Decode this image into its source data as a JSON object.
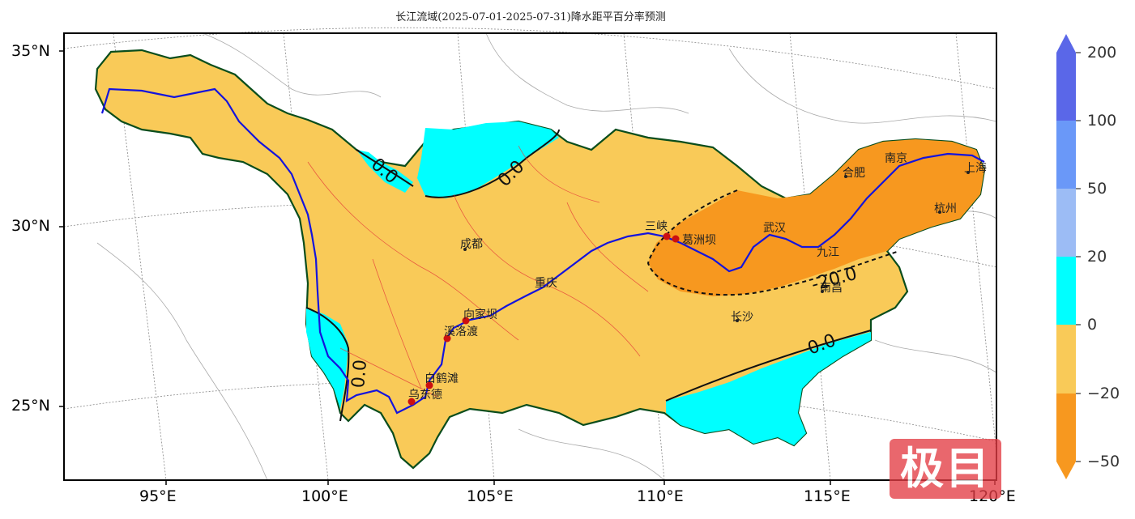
{
  "title": "长江流域(2025-07-01-2025-07-31)降水距平百分率预测",
  "lat_labels": [
    "35°N",
    "30°N",
    "25°N"
  ],
  "lon_labels": [
    "95°E",
    "100°E",
    "105°E",
    "110°E",
    "115°E",
    "120°E"
  ],
  "colorbar": {
    "ticks": [
      "200",
      "100",
      "50",
      "20",
      "0",
      "−20",
      "−50"
    ],
    "colors": [
      "#5a67e8",
      "#6a98f8",
      "#9cbcf5",
      "#00ffff",
      "#f9ca58",
      "#f7981f"
    ]
  },
  "contour_labels": [
    "0.0",
    "0.0",
    "-20.0",
    "0.0",
    "0.0"
  ],
  "cities": [
    "成都",
    "三峡",
    "葛洲坝",
    "武汉",
    "合肥",
    "南京",
    "上海",
    "杭州",
    "九江",
    "南昌",
    "长沙",
    "重庆",
    "向家坝",
    "溪洛渡",
    "白鹤滩",
    "乌东德"
  ],
  "watermark": "极目"
}
